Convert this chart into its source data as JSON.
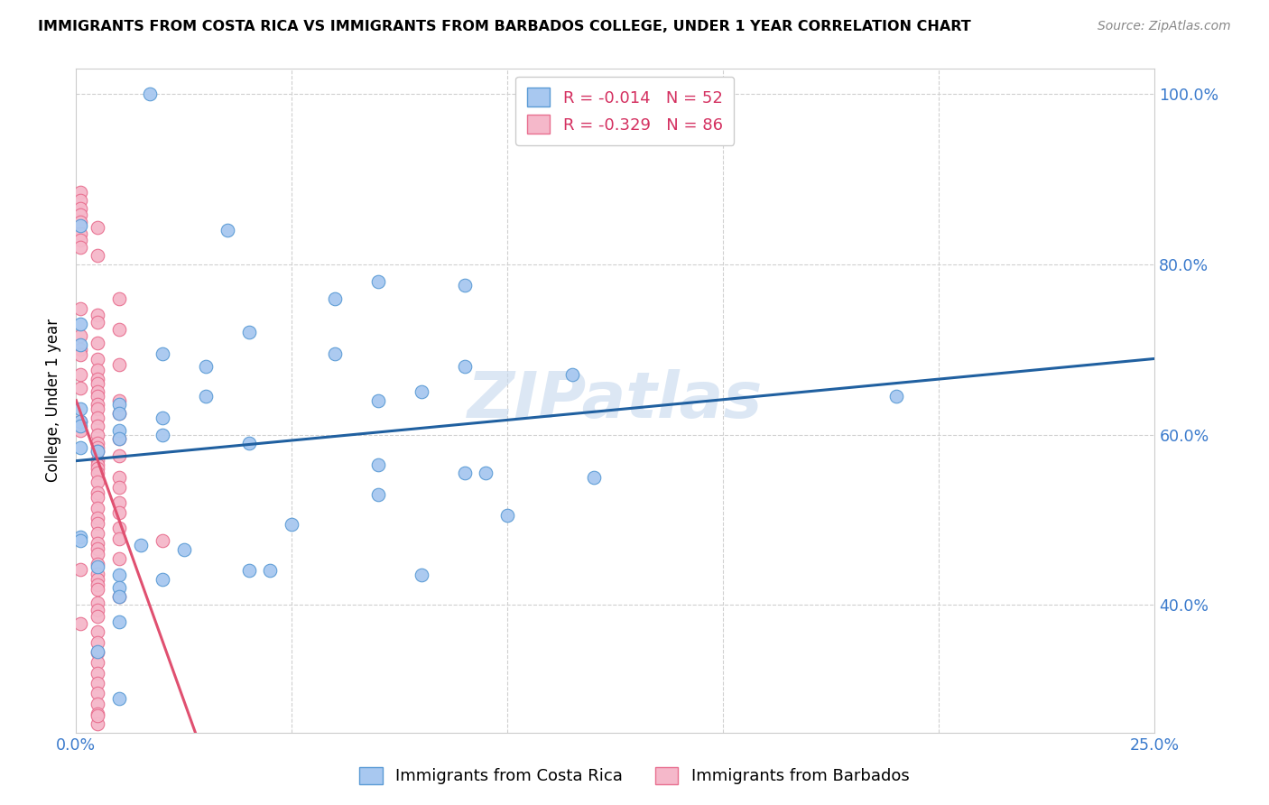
{
  "title": "IMMIGRANTS FROM COSTA RICA VS IMMIGRANTS FROM BARBADOS COLLEGE, UNDER 1 YEAR CORRELATION CHART",
  "source": "Source: ZipAtlas.com",
  "ylabel_label": "College, Under 1 year",
  "costa_rica_color": "#A8C8F0",
  "barbados_color": "#F5B8CA",
  "costa_rica_edge_color": "#5B9BD5",
  "barbados_edge_color": "#E87090",
  "costa_rica_line_color": "#2060A0",
  "barbados_line_color": "#E05070",
  "grid_color": "#D0D0D0",
  "watermark": "ZIPatlas",
  "watermark_color": "#C5D8EE",
  "xlim": [
    0.0,
    0.25
  ],
  "ylim": [
    0.25,
    1.03
  ],
  "x_ticks": [
    0.0,
    0.05,
    0.1,
    0.15,
    0.2,
    0.25
  ],
  "x_tick_labels": [
    "0.0%",
    "",
    "",
    "",
    "",
    "25.0%"
  ],
  "y_ticks": [
    0.4,
    0.6,
    0.8,
    1.0
  ],
  "y_tick_labels": [
    "40.0%",
    "60.0%",
    "80.0%",
    "100.0%"
  ],
  "costa_rica_R": -0.014,
  "costa_rica_N": 52,
  "barbados_R": -0.329,
  "barbados_N": 86,
  "costa_rica_x": [
    0.017,
    0.001,
    0.035,
    0.07,
    0.06,
    0.001,
    0.09,
    0.04,
    0.001,
    0.02,
    0.06,
    0.03,
    0.09,
    0.115,
    0.08,
    0.03,
    0.07,
    0.01,
    0.001,
    0.01,
    0.02,
    0.001,
    0.001,
    0.01,
    0.02,
    0.01,
    0.04,
    0.001,
    0.005,
    0.07,
    0.095,
    0.09,
    0.19,
    0.12,
    0.07,
    0.1,
    0.05,
    0.001,
    0.001,
    0.015,
    0.025,
    0.005,
    0.04,
    0.045,
    0.01,
    0.08,
    0.02,
    0.01,
    0.01,
    0.01,
    0.005,
    0.01
  ],
  "costa_rica_y": [
    1.0,
    0.845,
    0.84,
    0.78,
    0.76,
    0.73,
    0.775,
    0.72,
    0.705,
    0.695,
    0.695,
    0.68,
    0.68,
    0.67,
    0.65,
    0.645,
    0.64,
    0.635,
    0.63,
    0.625,
    0.62,
    0.615,
    0.61,
    0.605,
    0.6,
    0.595,
    0.59,
    0.585,
    0.58,
    0.565,
    0.555,
    0.555,
    0.645,
    0.55,
    0.53,
    0.505,
    0.495,
    0.48,
    0.475,
    0.47,
    0.465,
    0.445,
    0.44,
    0.44,
    0.435,
    0.435,
    0.43,
    0.42,
    0.41,
    0.38,
    0.345,
    0.29
  ],
  "barbados_x": [
    0.001,
    0.001,
    0.001,
    0.001,
    0.001,
    0.005,
    0.001,
    0.001,
    0.001,
    0.005,
    0.01,
    0.001,
    0.005,
    0.005,
    0.01,
    0.001,
    0.005,
    0.001,
    0.001,
    0.005,
    0.01,
    0.005,
    0.001,
    0.005,
    0.005,
    0.001,
    0.005,
    0.005,
    0.01,
    0.005,
    0.005,
    0.01,
    0.005,
    0.001,
    0.005,
    0.001,
    0.005,
    0.01,
    0.005,
    0.005,
    0.005,
    0.01,
    0.02,
    0.005,
    0.005,
    0.005,
    0.005,
    0.01,
    0.005,
    0.01,
    0.005,
    0.005,
    0.01,
    0.005,
    0.01,
    0.005,
    0.005,
    0.01,
    0.005,
    0.01,
    0.005,
    0.005,
    0.005,
    0.01,
    0.005,
    0.001,
    0.005,
    0.005,
    0.005,
    0.005,
    0.01,
    0.005,
    0.005,
    0.005,
    0.001,
    0.005,
    0.005,
    0.005,
    0.005,
    0.005,
    0.005,
    0.005,
    0.005,
    0.005,
    0.005,
    0.005
  ],
  "barbados_y": [
    0.885,
    0.875,
    0.865,
    0.858,
    0.85,
    0.843,
    0.836,
    0.828,
    0.82,
    0.81,
    0.76,
    0.748,
    0.74,
    0.732,
    0.724,
    0.716,
    0.708,
    0.7,
    0.694,
    0.688,
    0.682,
    0.676,
    0.67,
    0.665,
    0.66,
    0.655,
    0.65,
    0.645,
    0.64,
    0.635,
    0.63,
    0.625,
    0.62,
    0.615,
    0.61,
    0.605,
    0.6,
    0.595,
    0.59,
    0.585,
    0.58,
    0.575,
    0.475,
    0.57,
    0.565,
    0.56,
    0.555,
    0.55,
    0.544,
    0.538,
    0.532,
    0.526,
    0.52,
    0.514,
    0.508,
    0.502,
    0.496,
    0.49,
    0.484,
    0.478,
    0.472,
    0.466,
    0.46,
    0.454,
    0.448,
    0.442,
    0.436,
    0.43,
    0.424,
    0.418,
    0.41,
    0.402,
    0.394,
    0.386,
    0.378,
    0.368,
    0.356,
    0.344,
    0.332,
    0.32,
    0.308,
    0.296,
    0.284,
    0.272,
    0.26,
    0.27
  ]
}
